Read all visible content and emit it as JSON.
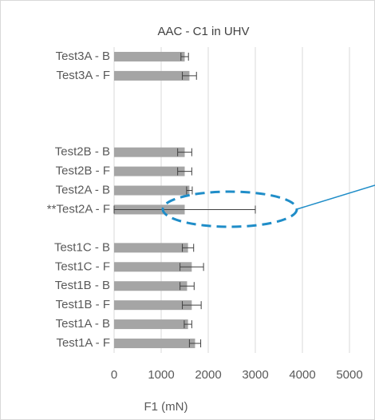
{
  "chart_data": {
    "type": "bar",
    "orientation": "horizontal",
    "title": "AAC - C1 in UHV",
    "x_label": "F1 (mN)",
    "categories": [
      "Test3A - B",
      "Test3A - F",
      null,
      null,
      null,
      "Test2B - B",
      "Test2B - F",
      "Test2A - B",
      "**Test2A - F",
      null,
      "Test1C - B",
      "Test1C - F",
      "Test1B - B",
      "Test1B - F",
      "Test1A - B",
      "Test1A - F"
    ],
    "values": [
      1500,
      1600,
      null,
      null,
      null,
      1500,
      1500,
      1600,
      1500,
      null,
      1570,
      1650,
      1550,
      1650,
      1570,
      1720
    ],
    "errors": [
      80,
      150,
      null,
      null,
      null,
      150,
      150,
      60,
      1500,
      null,
      120,
      250,
      150,
      200,
      80,
      120
    ],
    "color": "#a5a5a5",
    "error_color": "#404040",
    "xlim": [
      0,
      5000
    ],
    "xticks": [
      0,
      1000,
      2000,
      3000,
      4000,
      5000
    ],
    "grid": true
  }
}
